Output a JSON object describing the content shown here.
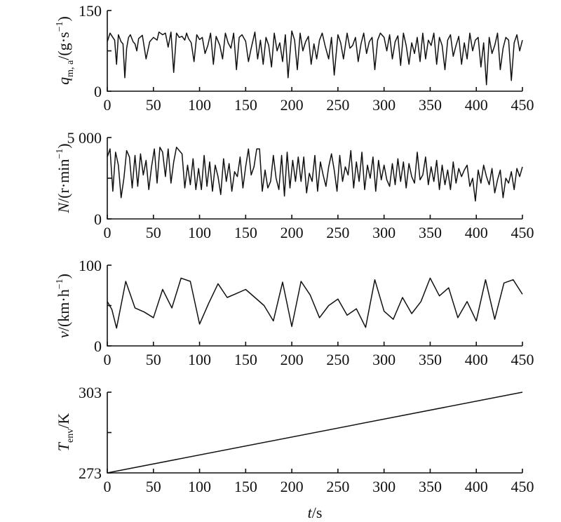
{
  "chart_data": [
    {
      "type": "line",
      "ylabel_text": {
        "var": "q",
        "sub": "m, a",
        "unit_open": "/(g·s",
        "sup": "−1",
        "unit_close": ")"
      },
      "xlim": [
        0,
        450
      ],
      "ylim": [
        0,
        150
      ],
      "yticks": [
        "0",
        "150"
      ],
      "xticks": [
        "0",
        "50",
        "100",
        "150",
        "200",
        "250",
        "300",
        "350",
        "400",
        "450"
      ],
      "x": [
        0,
        3,
        6,
        8,
        10,
        12,
        15,
        17,
        19,
        21,
        23,
        25,
        28,
        30,
        32,
        34,
        38,
        42,
        46,
        50,
        54,
        56,
        60,
        63,
        66,
        69,
        72,
        75,
        78,
        81,
        84,
        86,
        88,
        91,
        94,
        97,
        100,
        103,
        106,
        109,
        112,
        115,
        118,
        122,
        125,
        128,
        131,
        134,
        137,
        140,
        143,
        146,
        150,
        153,
        156,
        160,
        163,
        166,
        169,
        172,
        175,
        178,
        181,
        184,
        187,
        190,
        193,
        196,
        200,
        203,
        206,
        209,
        212,
        215,
        218,
        221,
        224,
        227,
        230,
        233,
        236,
        240,
        243,
        246,
        250,
        253,
        256,
        260,
        263,
        266,
        269,
        272,
        275,
        278,
        281,
        284,
        287,
        290,
        293,
        296,
        300,
        303,
        306,
        309,
        312,
        315,
        318,
        321,
        324,
        327,
        330,
        333,
        336,
        339,
        342,
        345,
        348,
        351,
        354,
        357,
        360,
        363,
        366,
        369,
        372,
        375,
        378,
        381,
        384,
        387,
        390,
        393,
        396,
        399,
        402,
        405,
        408,
        411,
        414,
        417,
        420,
        423,
        426,
        429,
        432,
        435,
        438,
        441,
        444,
        447,
        450
      ],
      "y": [
        92,
        108,
        100,
        95,
        50,
        105,
        92,
        88,
        25,
        80,
        100,
        105,
        92,
        88,
        75,
        98,
        104,
        60,
        92,
        100,
        95,
        110,
        105,
        108,
        82,
        110,
        35,
        108,
        100,
        102,
        95,
        108,
        98,
        90,
        55,
        105,
        96,
        100,
        70,
        85,
        108,
        50,
        102,
        85,
        60,
        108,
        90,
        80,
        108,
        40,
        100,
        105,
        93,
        55,
        80,
        110,
        60,
        95,
        50,
        100,
        85,
        45,
        108,
        75,
        90,
        55,
        105,
        25,
        112,
        95,
        40,
        108,
        75,
        92,
        102,
        50,
        88,
        60,
        95,
        108,
        85,
        60,
        100,
        30,
        105,
        90,
        60,
        108,
        80,
        85,
        100,
        55,
        88,
        108,
        70,
        92,
        100,
        40,
        95,
        108,
        100,
        75,
        105,
        60,
        92,
        103,
        48,
        108,
        85,
        50,
        90,
        70,
        100,
        55,
        108,
        60,
        95,
        85,
        108,
        50,
        100,
        85,
        40,
        95,
        105,
        65,
        85,
        102,
        50,
        90,
        60,
        108,
        75,
        95,
        100,
        45,
        90,
        12,
        100,
        70,
        85,
        108,
        40,
        80,
        100,
        95,
        20,
        90,
        105,
        75,
        95
      ],
      "x_range": [
        0,
        450
      ]
    },
    {
      "type": "line",
      "ylabel_text": {
        "var": "N",
        "unit_open": "/(r·min",
        "sup": "−1",
        "unit_close": ")"
      },
      "xlim": [
        0,
        450
      ],
      "ylim": [
        0,
        5000
      ],
      "yticks": [
        "0",
        "5 000"
      ],
      "xticks": [
        "0",
        "50",
        "100",
        "150",
        "200",
        "250",
        "300",
        "350",
        "400",
        "450"
      ],
      "x": [
        0,
        3,
        6,
        9,
        12,
        15,
        18,
        21,
        24,
        27,
        30,
        33,
        36,
        39,
        42,
        45,
        48,
        51,
        54,
        57,
        60,
        63,
        66,
        69,
        72,
        75,
        78,
        81,
        84,
        87,
        90,
        93,
        96,
        99,
        102,
        105,
        108,
        111,
        114,
        117,
        120,
        123,
        126,
        129,
        132,
        135,
        138,
        141,
        144,
        147,
        150,
        153,
        156,
        159,
        162,
        165,
        168,
        171,
        174,
        177,
        180,
        183,
        186,
        189,
        192,
        195,
        198,
        201,
        204,
        207,
        210,
        213,
        216,
        219,
        222,
        225,
        228,
        231,
        234,
        237,
        240,
        243,
        246,
        249,
        252,
        255,
        258,
        261,
        264,
        267,
        270,
        273,
        276,
        279,
        282,
        285,
        288,
        291,
        294,
        297,
        300,
        303,
        306,
        309,
        312,
        315,
        318,
        321,
        324,
        327,
        330,
        333,
        336,
        339,
        342,
        345,
        348,
        351,
        354,
        357,
        360,
        363,
        366,
        369,
        372,
        375,
        378,
        381,
        384,
        387,
        390,
        393,
        396,
        399,
        402,
        405,
        408,
        411,
        414,
        417,
        420,
        423,
        426,
        429,
        432,
        435,
        438,
        441,
        444,
        447,
        450
      ],
      "y": [
        3800,
        4300,
        1700,
        4100,
        3300,
        1300,
        2500,
        4200,
        3800,
        1900,
        3900,
        2000,
        4000,
        2700,
        3600,
        1800,
        3200,
        4300,
        2200,
        4400,
        4100,
        2600,
        4300,
        2200,
        3500,
        4400,
        4200,
        4000,
        1900,
        3300,
        2100,
        3700,
        1800,
        3100,
        1800,
        3900,
        2000,
        3500,
        1700,
        3300,
        2600,
        1500,
        3700,
        2300,
        3400,
        1700,
        2900,
        2600,
        3800,
        1900,
        3200,
        4300,
        2700,
        3200,
        4300,
        4300,
        1700,
        3000,
        1900,
        2300,
        3900,
        2500,
        1800,
        3900,
        1400,
        4100,
        1900,
        3600,
        2300,
        3800,
        2300,
        3800,
        1600,
        2800,
        2300,
        3900,
        1700,
        3500,
        2700,
        2000,
        3200,
        4000,
        3000,
        1700,
        3900,
        2300,
        3200,
        2700,
        4200,
        1900,
        3500,
        2300,
        4100,
        1800,
        3300,
        2500,
        3800,
        1700,
        3600,
        2400,
        3300,
        2400,
        2000,
        3400,
        2100,
        3700,
        2300,
        3500,
        1900,
        3400,
        2600,
        2200,
        4100,
        2400,
        2700,
        3800,
        2100,
        3200,
        2300,
        3600,
        1800,
        3300,
        2100,
        3000,
        1800,
        3500,
        2200,
        3100,
        2600,
        3000,
        3300,
        2000,
        2500,
        1100,
        3000,
        2200,
        3300,
        2600,
        2100,
        3100,
        1600,
        2400,
        3000,
        1300,
        2500,
        2200,
        2900,
        1800,
        3100,
        2600,
        3200
      ],
      "x_range": [
        0,
        450
      ]
    },
    {
      "type": "line",
      "ylabel_text": {
        "var": "v",
        "unit_open": "/(km·h",
        "sup": "−1",
        "unit_close": ")"
      },
      "xlim": [
        0,
        450
      ],
      "ylim": [
        0,
        100
      ],
      "yticks": [
        "0",
        "100"
      ],
      "xticks": [
        "0",
        "50",
        "100",
        "150",
        "200",
        "250",
        "300",
        "350",
        "400",
        "450"
      ],
      "x": [
        0,
        5,
        10,
        20,
        30,
        40,
        50,
        60,
        70,
        80,
        90,
        100,
        110,
        120,
        130,
        140,
        150,
        160,
        170,
        180,
        190,
        200,
        210,
        220,
        230,
        240,
        250,
        260,
        270,
        280,
        290,
        300,
        310,
        320,
        330,
        340,
        350,
        360,
        370,
        380,
        390,
        400,
        410,
        420,
        430,
        440,
        450
      ],
      "y": [
        55,
        45,
        22,
        80,
        47,
        42,
        35,
        70,
        47,
        84,
        80,
        27,
        53,
        77,
        60,
        65,
        70,
        60,
        50,
        31,
        79,
        24,
        80,
        63,
        35,
        50,
        58,
        38,
        46,
        23,
        82,
        43,
        33,
        60,
        40,
        55,
        84,
        62,
        72,
        35,
        55,
        31,
        82,
        33,
        78,
        82,
        64
      ],
      "x_range": [
        0,
        450
      ]
    },
    {
      "type": "line",
      "ylabel_text": {
        "var": "T",
        "sub": "env",
        "unit_open": "/K",
        "sup": "",
        "unit_close": ""
      },
      "xlim": [
        0,
        450
      ],
      "ylim": [
        273,
        303
      ],
      "yticks": [
        "273",
        "303"
      ],
      "xticks": [
        "0",
        "50",
        "100",
        "150",
        "200",
        "250",
        "300",
        "350",
        "400",
        "450"
      ],
      "x": [
        0,
        450
      ],
      "y": [
        273,
        303
      ],
      "xlabel": {
        "var": "t",
        "unit": "/s"
      },
      "x_range": [
        0,
        450
      ]
    }
  ]
}
